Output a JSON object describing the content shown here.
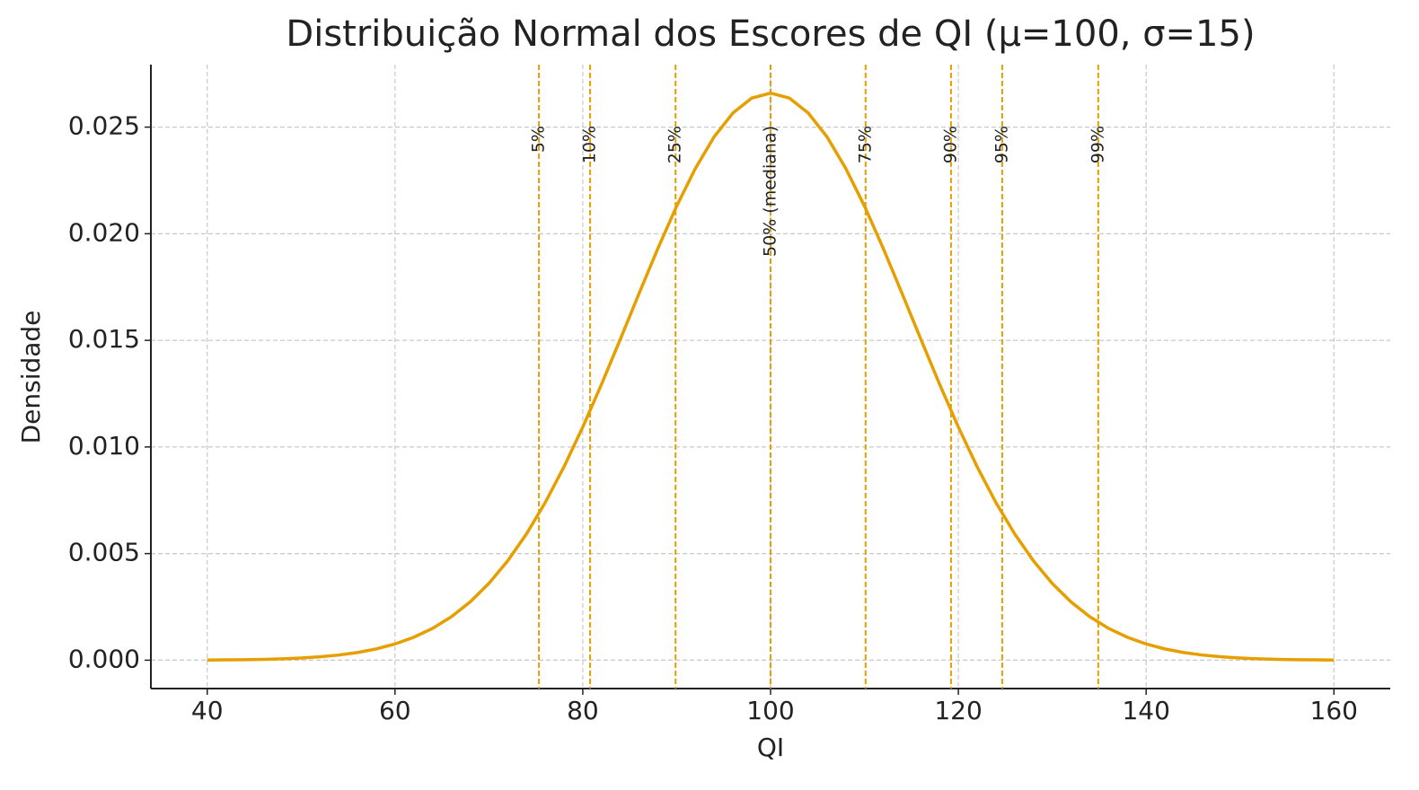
{
  "chart_data": {
    "type": "line",
    "title": "Distribuição Normal dos Escores de QI (μ=100, σ=15)",
    "xlabel": "QI",
    "ylabel": "Densidade",
    "color": "#e69f00",
    "x": [
      40,
      42,
      44,
      46,
      48,
      50,
      52,
      54,
      56,
      58,
      60,
      62,
      64,
      66,
      68,
      70,
      72,
      74,
      76,
      78,
      80,
      82,
      84,
      86,
      88,
      90,
      92,
      94,
      96,
      98,
      100,
      102,
      104,
      106,
      108,
      110,
      112,
      114,
      116,
      118,
      120,
      122,
      124,
      126,
      128,
      130,
      132,
      134,
      136,
      138,
      140,
      142,
      144,
      146,
      148,
      150,
      152,
      154,
      156,
      158,
      160
    ],
    "values": [
      8.9e-06,
      1.51e-05,
      2.5e-05,
      4.08e-05,
      6.53e-05,
      0.0001028,
      0.0001589,
      0.0002414,
      0.0003602,
      0.0005277,
      0.0007598,
      0.0010742,
      0.0014929,
      0.002037,
      0.002732,
      0.003599,
      0.004658,
      0.005922,
      0.007395,
      0.009072,
      0.010934,
      0.012946,
      0.015057,
      0.017205,
      0.019313,
      0.021297,
      0.02307,
      0.024552,
      0.025667,
      0.026361,
      0.026596,
      0.026361,
      0.025667,
      0.024552,
      0.02307,
      0.021297,
      0.019313,
      0.017205,
      0.015057,
      0.012946,
      0.010934,
      0.009072,
      0.007395,
      0.005922,
      0.004658,
      0.003599,
      0.002732,
      0.002037,
      0.0014929,
      0.0010742,
      0.0007598,
      0.0005277,
      0.0003602,
      0.0002414,
      0.0001589,
      0.0001028,
      6.53e-05,
      4.08e-05,
      2.5e-05,
      1.51e-05,
      8.9e-06
    ],
    "vlines": [
      {
        "x": 75.33,
        "label": "5%"
      },
      {
        "x": 80.78,
        "label": "10%"
      },
      {
        "x": 89.88,
        "label": "25%"
      },
      {
        "x": 100,
        "label": "50% (mediana)"
      },
      {
        "x": 110.12,
        "label": "75%"
      },
      {
        "x": 119.22,
        "label": "90%"
      },
      {
        "x": 124.67,
        "label": "95%"
      },
      {
        "x": 134.9,
        "label": "99%"
      }
    ],
    "xlim": [
      34,
      166
    ],
    "xticks": [
      40,
      60,
      80,
      100,
      120,
      140,
      160
    ],
    "ylim": [
      -0.00133,
      0.02793
    ],
    "yticks": [
      {
        "value": 0,
        "label": "0.000"
      },
      {
        "value": 0.005,
        "label": "0.005"
      },
      {
        "value": 0.01,
        "label": "0.010"
      },
      {
        "value": 0.015,
        "label": "0.015"
      },
      {
        "value": 0.02,
        "label": "0.020"
      },
      {
        "value": 0.025,
        "label": "0.025"
      }
    ],
    "grid": true
  }
}
